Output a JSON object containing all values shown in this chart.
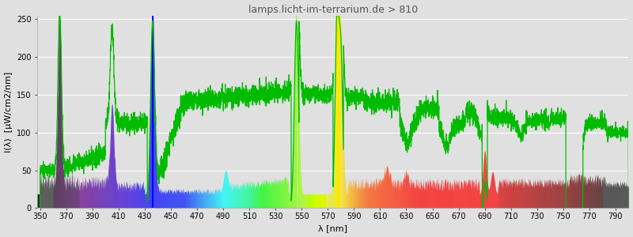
{
  "title": "lamps.licht-im-terrarium.de > 810",
  "xlabel": "λ [nm]",
  "ylabel": "I(λ)  [µW/cm2/nm]",
  "xlim": [
    348,
    800
  ],
  "ylim": [
    0,
    255
  ],
  "yticks": [
    0,
    50,
    100,
    150,
    200,
    250
  ],
  "xticks": [
    350,
    370,
    390,
    410,
    430,
    450,
    470,
    490,
    510,
    530,
    550,
    570,
    590,
    610,
    630,
    650,
    670,
    690,
    710,
    730,
    750,
    770,
    790
  ],
  "bg_color": "#e0e0e0",
  "grid_color": "#ffffff",
  "line_color": "#00bb00",
  "line_width": 0.9,
  "title_color": "#555555",
  "title_fontsize": 9,
  "axis_label_fontsize": 8,
  "tick_fontsize": 7
}
